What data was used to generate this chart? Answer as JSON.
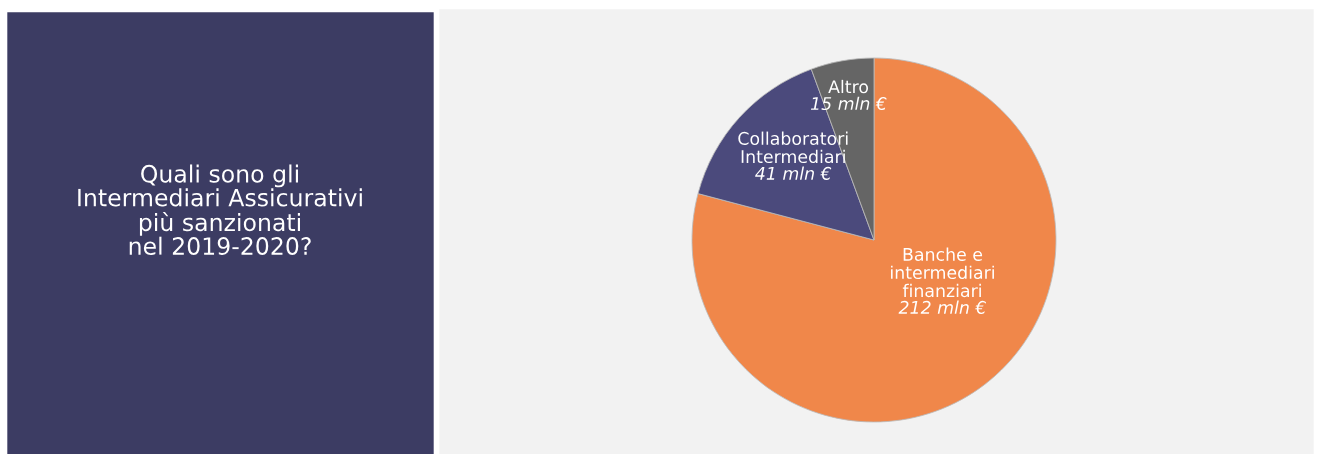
{
  "chart_data": {
    "type": "pie",
    "title": "Quali sono gli\nIntermediari Assicurativi\npiù sanzionati\nnel 2019-2020?",
    "categories": [
      "Banche e\nintermediari\nfinanziari",
      "Collaboratori\nIntermediari",
      "Altro"
    ],
    "values": [
      212,
      41,
      15
    ],
    "value_labels": [
      "212 mln €",
      "41 mln €",
      "15 mln €"
    ],
    "colors": [
      "#f0874a",
      "#4b4a7c",
      "#656565"
    ],
    "legend": false
  }
}
